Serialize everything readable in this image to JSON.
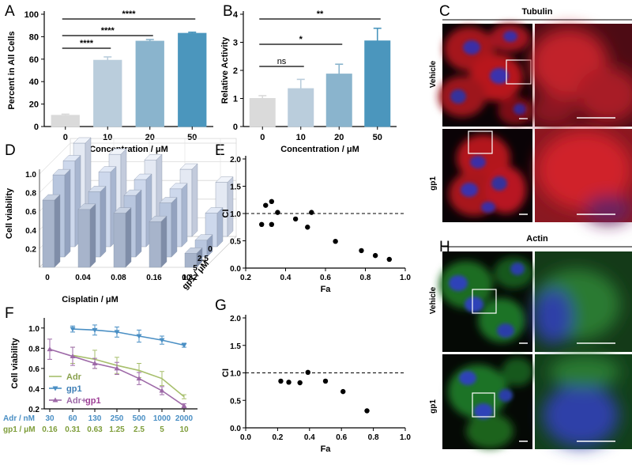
{
  "figure": {
    "panel_letters": [
      "A",
      "B",
      "C",
      "D",
      "E",
      "F",
      "G",
      "H"
    ]
  },
  "chart_data": [
    {
      "panel": "A",
      "type": "bar",
      "categories": [
        "0",
        "10",
        "20",
        "50"
      ],
      "values": [
        10,
        59,
        76,
        83
      ],
      "errors": [
        1,
        3,
        1.5,
        1
      ],
      "colors": [
        "#dadada",
        "#bacddc",
        "#8ab4cd",
        "#4b96bd"
      ],
      "ylabel": "Percent in All Cells",
      "xlabel": "Concentration / μM",
      "ylim": [
        0,
        100
      ],
      "yticks": [
        0,
        20,
        40,
        60,
        80,
        100
      ],
      "significance": [
        {
          "from": 0,
          "to": 1,
          "label": "****"
        },
        {
          "from": 0,
          "to": 2,
          "label": "****"
        },
        {
          "from": 0,
          "to": 3,
          "label": "****"
        }
      ]
    },
    {
      "panel": "B",
      "type": "bar",
      "categories": [
        "0",
        "10",
        "20",
        "50"
      ],
      "values": [
        1.0,
        1.35,
        1.87,
        3.05
      ],
      "errors": [
        0.1,
        0.33,
        0.35,
        0.45
      ],
      "colors": [
        "#dadada",
        "#bacddc",
        "#8ab4cd",
        "#4b96bd"
      ],
      "ylabel": "Relative Activity",
      "xlabel": "Concentration / μM",
      "ylim": [
        0,
        4
      ],
      "yticks": [
        0,
        1,
        2,
        3,
        4
      ],
      "significance": [
        {
          "from": 0,
          "to": 1,
          "label": "ns"
        },
        {
          "from": 0,
          "to": 2,
          "label": "*"
        },
        {
          "from": 0,
          "to": 3,
          "label": "**"
        }
      ]
    },
    {
      "panel": "D",
      "type": "bar",
      "subtype": "3d-bar",
      "categories": [
        "0",
        "0.04",
        "0.08",
        "0.16",
        "0.32"
      ],
      "series": [
        {
          "name": "10",
          "values": [
            0.72,
            0.62,
            0.58,
            0.49,
            0.15
          ]
        },
        {
          "name": "5",
          "values": [
            0.88,
            0.7,
            0.66,
            0.58,
            0.18
          ]
        },
        {
          "name": "2.5",
          "values": [
            0.92,
            0.8,
            0.72,
            0.62,
            0.36
          ]
        },
        {
          "name": "0",
          "values": [
            1.0,
            0.88,
            0.82,
            0.72,
            0.58
          ]
        }
      ],
      "xlabel": "Cisplatin / μM",
      "ylabel": "Cell viability",
      "zlabel": "gp1 / μM",
      "ylim": [
        0,
        1.0
      ],
      "yticks": [
        "0.2",
        "0.4",
        "0.6",
        "0.8",
        "1.0"
      ],
      "zticks": [
        "10",
        "5",
        "2.5",
        "0"
      ]
    },
    {
      "panel": "E",
      "type": "scatter",
      "x": [
        0.28,
        0.3,
        0.33,
        0.33,
        0.36,
        0.45,
        0.51,
        0.53,
        0.65,
        0.78,
        0.85,
        0.92
      ],
      "y": [
        0.8,
        1.15,
        1.22,
        0.8,
        1.02,
        0.9,
        0.75,
        1.02,
        0.49,
        0.32,
        0.23,
        0.16
      ],
      "reference_line": 1.0,
      "xlabel": "Fa",
      "ylabel": "CI",
      "xlim": [
        0.2,
        1.0
      ],
      "ylim": [
        0,
        2.0
      ],
      "xticks": [
        "0.2",
        "0.4",
        "0.6",
        "0.8",
        "1.0"
      ],
      "yticks": [
        "0.0",
        "0.5",
        "1.0",
        "1.5",
        "2.0"
      ]
    },
    {
      "panel": "F",
      "type": "line",
      "x": [
        "30",
        "60",
        "130",
        "250",
        "500",
        "1000",
        "2000"
      ],
      "series": [
        {
          "name": "Adr",
          "color": "#a7bf6c",
          "marker": "none",
          "values": [
            null,
            0.73,
            0.69,
            0.63,
            0.58,
            0.5,
            0.32
          ],
          "errors": [
            null,
            0.08,
            0.09,
            0.08,
            0.07,
            0.07,
            0.02
          ]
        },
        {
          "name": "gp1",
          "color": "#4a8fc4",
          "marker": "triangle-down",
          "values": [
            null,
            0.99,
            0.98,
            0.96,
            0.92,
            0.88,
            0.83
          ],
          "errors": [
            null,
            0.03,
            0.05,
            0.05,
            0.06,
            0.04,
            0.02
          ]
        },
        {
          "name": "Adr+gp1",
          "color": "#9e6aa8",
          "marker": "triangle",
          "values": [
            0.79,
            0.72,
            0.65,
            0.6,
            0.5,
            0.38,
            0.23
          ],
          "errors": [
            0.1,
            0.09,
            0.05,
            0.06,
            0.06,
            0.04,
            0.02
          ]
        }
      ],
      "legend_labels": [
        "Adr",
        "gp1",
        "Adr+",
        "gp1"
      ],
      "ylabel": "Cell viability",
      "ylim": [
        0.2,
        1.1
      ],
      "yticks": [
        "0.2",
        "0.4",
        "0.6",
        "0.8",
        "1.0"
      ],
      "row_labels": [
        {
          "name": "Adr / nM",
          "color": "#4a8fc4",
          "values": [
            "30",
            "60",
            "130",
            "250",
            "500",
            "1000",
            "2000"
          ]
        },
        {
          "name": "gp1 / μM",
          "color": "#7e9d3a",
          "values": [
            "0.16",
            "0.31",
            "0.63",
            "1.25",
            "2.5",
            "5",
            "10"
          ]
        }
      ]
    },
    {
      "panel": "G",
      "type": "scatter",
      "x": [
        0.22,
        0.27,
        0.34,
        0.39,
        0.5,
        0.61,
        0.76
      ],
      "y": [
        0.85,
        0.83,
        0.82,
        1.01,
        0.85,
        0.66,
        0.31
      ],
      "reference_line": 1.0,
      "xlabel": "Fa",
      "ylabel": "CI",
      "xlim": [
        0.0,
        1.0
      ],
      "ylim": [
        0,
        2.0
      ],
      "xticks": [
        "0.0",
        "0.2",
        "0.4",
        "0.6",
        "0.8",
        "1.0"
      ],
      "yticks": [
        "0.0",
        "0.5",
        "1.0",
        "1.5",
        "2.0"
      ]
    }
  ],
  "micrographs": {
    "C": {
      "title": "Tubulin",
      "rows": [
        "Vehicle",
        "gp1"
      ],
      "stain_color": "#d8252e",
      "nucleus_color": "#3441c8"
    },
    "H": {
      "title": "Actin",
      "rows": [
        "Vehicle",
        "gp1"
      ],
      "stain_color": "#35a83a",
      "nucleus_color": "#2f46c8"
    }
  }
}
